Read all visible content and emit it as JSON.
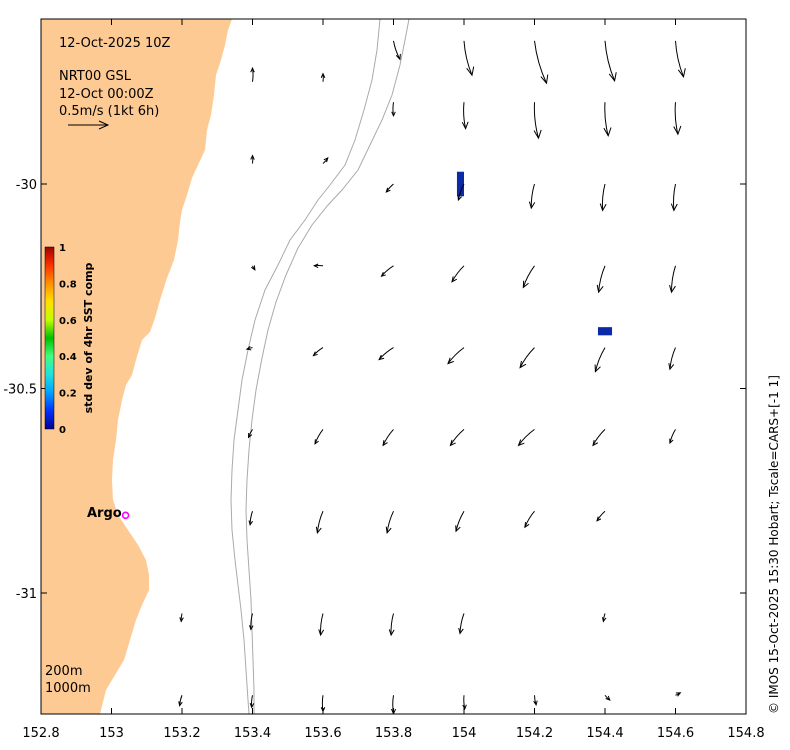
{
  "map_info": {
    "datetime": "12-Oct-2025 10Z",
    "product": "NRT00 GSL",
    "product_time": "12-Oct 00:00Z",
    "vector_scale": "0.5m/s (1kt 6h)"
  },
  "colorbar": {
    "title": "std dev of 4hr SST comp",
    "ticks": [
      "0",
      "0.2",
      "0.4",
      "0.6",
      "0.8",
      "1"
    ],
    "colors": [
      "#00008f",
      "#0030ff",
      "#00a0ff",
      "#20e0e0",
      "#40ff80",
      "#00c000",
      "#c0ff00",
      "#ffe000",
      "#ff9000",
      "#ff3000",
      "#a00000"
    ]
  },
  "argo": {
    "label": "Argo",
    "marker_color": "#ff00ff"
  },
  "contour_labels": {
    "shelf": "200m",
    "slope": "1000m"
  },
  "credit": "© IMOS 15-Oct-2025 15:30 Hobart; Tscale=CARS+[-1 1]",
  "colors": {
    "land": "#fdca94",
    "sst_patch": "#0a2aa8",
    "contour": "#aaaaaa"
  },
  "chart_data": {
    "type": "vector-field map",
    "xlim": [
      152.8,
      154.8
    ],
    "ylim": [
      -31.3,
      -29.6
    ],
    "xticks": [
      "152.8",
      "153",
      "153.2",
      "153.4",
      "153.6",
      "153.8",
      "154",
      "154.2",
      "154.4",
      "154.6",
      "154.8"
    ],
    "yticks": [
      "-30",
      "-30.5",
      "-31"
    ],
    "ytick_values": [
      -30,
      -30.5,
      -31
    ],
    "argo_position": [
      153.04,
      -30.81
    ],
    "sst_patches": [
      {
        "lon": [
          153.98,
          154.0
        ],
        "lat": [
          -30.03,
          -29.97
        ]
      },
      {
        "lon": [
          154.38,
          154.42
        ],
        "lat": [
          -30.37,
          -30.35
        ]
      }
    ],
    "current_vectors_ms": [
      {
        "lon": 153.4,
        "lat": -29.75,
        "u": 0.0,
        "v": 0.17
      },
      {
        "lon": 153.6,
        "lat": -29.75,
        "u": 0.0,
        "v": 0.1
      },
      {
        "lon": 153.8,
        "lat": -29.65,
        "u": 0.08,
        "v": -0.23
      },
      {
        "lon": 154.0,
        "lat": -29.65,
        "u": 0.1,
        "v": -0.43
      },
      {
        "lon": 154.2,
        "lat": -29.65,
        "u": 0.15,
        "v": -0.53
      },
      {
        "lon": 154.4,
        "lat": -29.65,
        "u": 0.12,
        "v": -0.5
      },
      {
        "lon": 154.6,
        "lat": -29.65,
        "u": 0.1,
        "v": -0.45
      },
      {
        "lon": 153.8,
        "lat": -29.8,
        "u": 0.0,
        "v": -0.17
      },
      {
        "lon": 154.0,
        "lat": -29.8,
        "u": 0.02,
        "v": -0.33
      },
      {
        "lon": 154.2,
        "lat": -29.8,
        "u": 0.05,
        "v": -0.45
      },
      {
        "lon": 154.4,
        "lat": -29.8,
        "u": 0.04,
        "v": -0.42
      },
      {
        "lon": 154.6,
        "lat": -29.8,
        "u": 0.03,
        "v": -0.4
      },
      {
        "lon": 153.4,
        "lat": -29.95,
        "u": 0.0,
        "v": 0.1
      },
      {
        "lon": 153.6,
        "lat": -29.95,
        "u": 0.06,
        "v": 0.07
      },
      {
        "lon": 153.8,
        "lat": -30.0,
        "u": -0.09,
        "v": -0.1
      },
      {
        "lon": 154.0,
        "lat": -30.0,
        "u": -0.07,
        "v": -0.2
      },
      {
        "lon": 154.2,
        "lat": -30.0,
        "u": -0.04,
        "v": -0.3
      },
      {
        "lon": 154.4,
        "lat": -30.0,
        "u": -0.03,
        "v": -0.33
      },
      {
        "lon": 154.6,
        "lat": -30.0,
        "u": -0.02,
        "v": -0.33
      },
      {
        "lon": 153.4,
        "lat": -30.2,
        "u": 0.03,
        "v": -0.05
      },
      {
        "lon": 153.6,
        "lat": -30.2,
        "u": -0.11,
        "v": 0.0
      },
      {
        "lon": 153.8,
        "lat": -30.2,
        "u": -0.15,
        "v": -0.13
      },
      {
        "lon": 154.0,
        "lat": -30.2,
        "u": -0.15,
        "v": -0.2
      },
      {
        "lon": 154.2,
        "lat": -30.2,
        "u": -0.14,
        "v": -0.27
      },
      {
        "lon": 154.4,
        "lat": -30.2,
        "u": -0.08,
        "v": -0.33
      },
      {
        "lon": 154.6,
        "lat": -30.2,
        "u": -0.05,
        "v": -0.33
      },
      {
        "lon": 153.4,
        "lat": -30.4,
        "u": -0.07,
        "v": -0.02
      },
      {
        "lon": 153.6,
        "lat": -30.4,
        "u": -0.12,
        "v": -0.1
      },
      {
        "lon": 153.8,
        "lat": -30.4,
        "u": -0.18,
        "v": -0.15
      },
      {
        "lon": 154.0,
        "lat": -30.4,
        "u": -0.2,
        "v": -0.2
      },
      {
        "lon": 154.2,
        "lat": -30.4,
        "u": -0.18,
        "v": -0.25
      },
      {
        "lon": 154.4,
        "lat": -30.4,
        "u": -0.12,
        "v": -0.3
      },
      {
        "lon": 154.6,
        "lat": -30.4,
        "u": -0.07,
        "v": -0.27
      },
      {
        "lon": 153.4,
        "lat": -30.6,
        "u": -0.05,
        "v": -0.1
      },
      {
        "lon": 153.6,
        "lat": -30.6,
        "u": -0.1,
        "v": -0.18
      },
      {
        "lon": 153.8,
        "lat": -30.6,
        "u": -0.13,
        "v": -0.2
      },
      {
        "lon": 154.0,
        "lat": -30.6,
        "u": -0.17,
        "v": -0.2
      },
      {
        "lon": 154.2,
        "lat": -30.6,
        "u": -0.2,
        "v": -0.2
      },
      {
        "lon": 154.4,
        "lat": -30.6,
        "u": -0.15,
        "v": -0.2
      },
      {
        "lon": 154.6,
        "lat": -30.6,
        "u": -0.07,
        "v": -0.17
      },
      {
        "lon": 153.4,
        "lat": -30.8,
        "u": -0.03,
        "v": -0.17
      },
      {
        "lon": 153.6,
        "lat": -30.8,
        "u": -0.07,
        "v": -0.27
      },
      {
        "lon": 153.8,
        "lat": -30.8,
        "u": -0.08,
        "v": -0.27
      },
      {
        "lon": 154.0,
        "lat": -30.8,
        "u": -0.1,
        "v": -0.25
      },
      {
        "lon": 154.2,
        "lat": -30.8,
        "u": -0.12,
        "v": -0.2
      },
      {
        "lon": 154.4,
        "lat": -30.8,
        "u": -0.1,
        "v": -0.12
      },
      {
        "lon": 153.2,
        "lat": -31.05,
        "u": -0.01,
        "v": -0.1
      },
      {
        "lon": 153.4,
        "lat": -31.05,
        "u": -0.02,
        "v": -0.2
      },
      {
        "lon": 153.6,
        "lat": -31.05,
        "u": -0.03,
        "v": -0.27
      },
      {
        "lon": 153.8,
        "lat": -31.05,
        "u": -0.03,
        "v": -0.27
      },
      {
        "lon": 154.0,
        "lat": -31.05,
        "u": -0.05,
        "v": -0.25
      },
      {
        "lon": 154.4,
        "lat": -31.05,
        "u": -0.02,
        "v": -0.1
      },
      {
        "lon": 153.2,
        "lat": -31.25,
        "u": -0.03,
        "v": -0.13
      },
      {
        "lon": 153.4,
        "lat": -31.25,
        "u": -0.01,
        "v": -0.15
      },
      {
        "lon": 153.6,
        "lat": -31.25,
        "u": 0.0,
        "v": -0.2
      },
      {
        "lon": 153.8,
        "lat": -31.25,
        "u": 0.0,
        "v": -0.23
      },
      {
        "lon": 154.0,
        "lat": -31.25,
        "u": 0.01,
        "v": -0.17
      },
      {
        "lon": 154.2,
        "lat": -31.25,
        "u": 0.02,
        "v": -0.12
      },
      {
        "lon": 154.4,
        "lat": -31.25,
        "u": 0.06,
        "v": -0.06
      },
      {
        "lon": 154.6,
        "lat": -31.25,
        "u": 0.06,
        "v": 0.03
      }
    ]
  }
}
